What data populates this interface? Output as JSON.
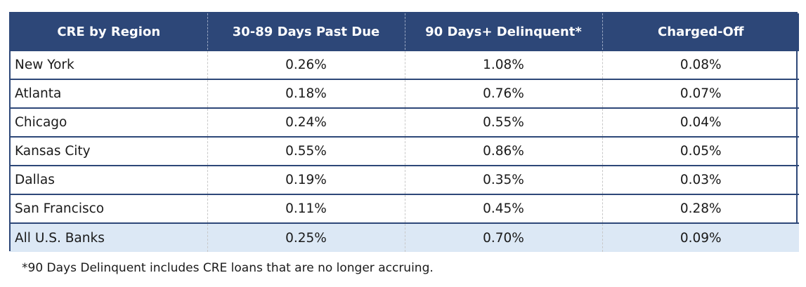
{
  "chart_data": {
    "type": "table",
    "columns": [
      "CRE by Region",
      "30-89 Days Past Due",
      "90 Days+ Delinquent*",
      "Charged-Off"
    ],
    "rows": [
      {
        "region": "New York",
        "past_due_30_89": "0.26%",
        "delinquent_90": "1.08%",
        "charged_off": "0.08%"
      },
      {
        "region": "Atlanta",
        "past_due_30_89": "0.18%",
        "delinquent_90": "0.76%",
        "charged_off": "0.07%"
      },
      {
        "region": "Chicago",
        "past_due_30_89": "0.24%",
        "delinquent_90": "0.55%",
        "charged_off": "0.04%"
      },
      {
        "region": "Kansas City",
        "past_due_30_89": "0.55%",
        "delinquent_90": "0.86%",
        "charged_off": "0.05%"
      },
      {
        "region": "Dallas",
        "past_due_30_89": "0.19%",
        "delinquent_90": "0.35%",
        "charged_off": "0.03%"
      },
      {
        "region": "San Francisco",
        "past_due_30_89": "0.11%",
        "delinquent_90": "0.45%",
        "charged_off": "0.28%"
      },
      {
        "region": "All U.S. Banks",
        "past_due_30_89": "0.25%",
        "delinquent_90": "0.70%",
        "charged_off": "0.09%"
      }
    ],
    "footnote": "*90 Days Delinquent includes CRE loans that are no longer accruing."
  },
  "colors": {
    "header_bg": "#2d4778",
    "header_text": "#ffffff",
    "total_row_bg": "#dce8f5",
    "border": "#2d4778"
  }
}
